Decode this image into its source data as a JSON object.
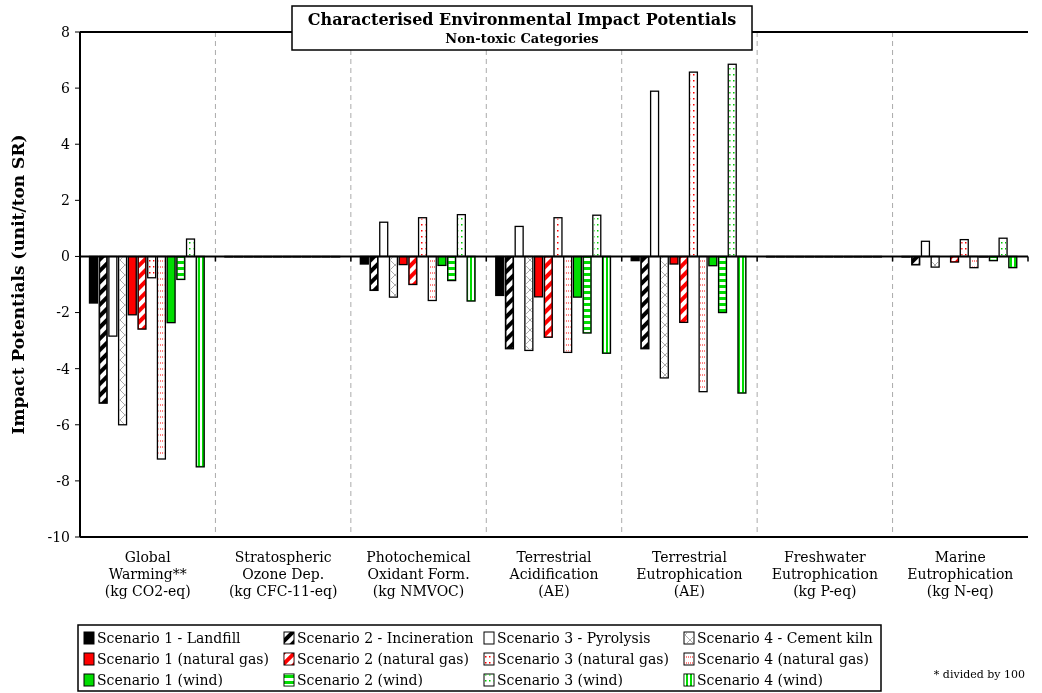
{
  "chart_data": {
    "type": "bar",
    "title": "Characterised Environmental Impact Potentials",
    "subtitle": "Non-toxic Categories",
    "ylabel": "Impact Potentials (unit/ton SR)",
    "categories": [
      "Global\nWarming**\n(kg CO2-eq)",
      "Stratospheric\nOzone Dep.\n(kg CFC-11-eq)",
      "Photochemical\nOxidant Form.\n(kg NMVOC)",
      "Terrestrial\nAcidification\n(AE)",
      "Terrestrial\nEutrophication\n(AE)",
      "Freshwater\nEutrophication\n(kg P-eq)",
      "Marine\nEutrophication\n(kg N-eq)"
    ],
    "series": [
      {
        "name": "Scenario 1 - Landfill",
        "color": "#000000",
        "values": [
          -1.66,
          0,
          -0.27,
          -1.39,
          -0.15,
          0,
          -0.02
        ]
      },
      {
        "name": "Scenario 2 - Incineration",
        "color": "#000000",
        "values": [
          -5.23,
          0,
          -1.21,
          -3.29,
          -3.29,
          0,
          -0.3
        ]
      },
      {
        "name": "Scenario 3 - Pyrolysis",
        "color": "#ffffff",
        "values": [
          -2.84,
          0,
          1.22,
          1.07,
          5.89,
          0,
          0.54
        ]
      },
      {
        "name": "Scenario 4 - Cement kiln",
        "color": "#ffffff",
        "values": [
          -6.0,
          0,
          -1.45,
          -3.35,
          -4.33,
          0,
          -0.38
        ]
      },
      {
        "name": "Scenario 1 (natural gas)",
        "color": "#ff0000",
        "values": [
          -2.08,
          0,
          -0.29,
          -1.44,
          -0.27,
          0,
          null
        ]
      },
      {
        "name": "Scenario 2 (natural gas)",
        "color": "#ff0000",
        "values": [
          -2.59,
          0,
          -1.0,
          -2.88,
          -2.35,
          0,
          -0.2
        ]
      },
      {
        "name": "Scenario 3 (natural gas)",
        "color": "#ffffff",
        "values": [
          -0.76,
          0,
          1.38,
          1.38,
          6.57,
          0,
          0.6
        ]
      },
      {
        "name": "Scenario 4 (natural gas)",
        "color": "#ffffff",
        "values": [
          -7.22,
          0,
          -1.57,
          -3.42,
          -4.82,
          0,
          -0.4
        ]
      },
      {
        "name": "Scenario 1 (wind)",
        "color": "#00dd00",
        "values": [
          -2.36,
          0,
          -0.32,
          -1.45,
          -0.33,
          0,
          -0.02
        ]
      },
      {
        "name": "Scenario 2 (wind)",
        "color": "#00dd00",
        "values": [
          -0.82,
          0,
          -0.86,
          -2.73,
          -2.0,
          0,
          -0.15
        ]
      },
      {
        "name": "Scenario 3 (wind)",
        "color": "#ffffff",
        "values": [
          0.62,
          0,
          1.49,
          1.47,
          6.85,
          0,
          0.65
        ]
      },
      {
        "name": "Scenario 4 (wind)",
        "color": "#00dd00",
        "values": [
          -7.5,
          0,
          -1.59,
          -3.45,
          -4.87,
          0,
          -0.4
        ]
      }
    ],
    "ylim": [
      -10,
      8
    ],
    "yticks": [
      -10,
      -8,
      -6,
      -4,
      -2,
      0,
      2,
      4,
      6,
      8
    ],
    "grid": "x",
    "legend": "bottom",
    "annotations": [
      "* divided by 100"
    ]
  }
}
